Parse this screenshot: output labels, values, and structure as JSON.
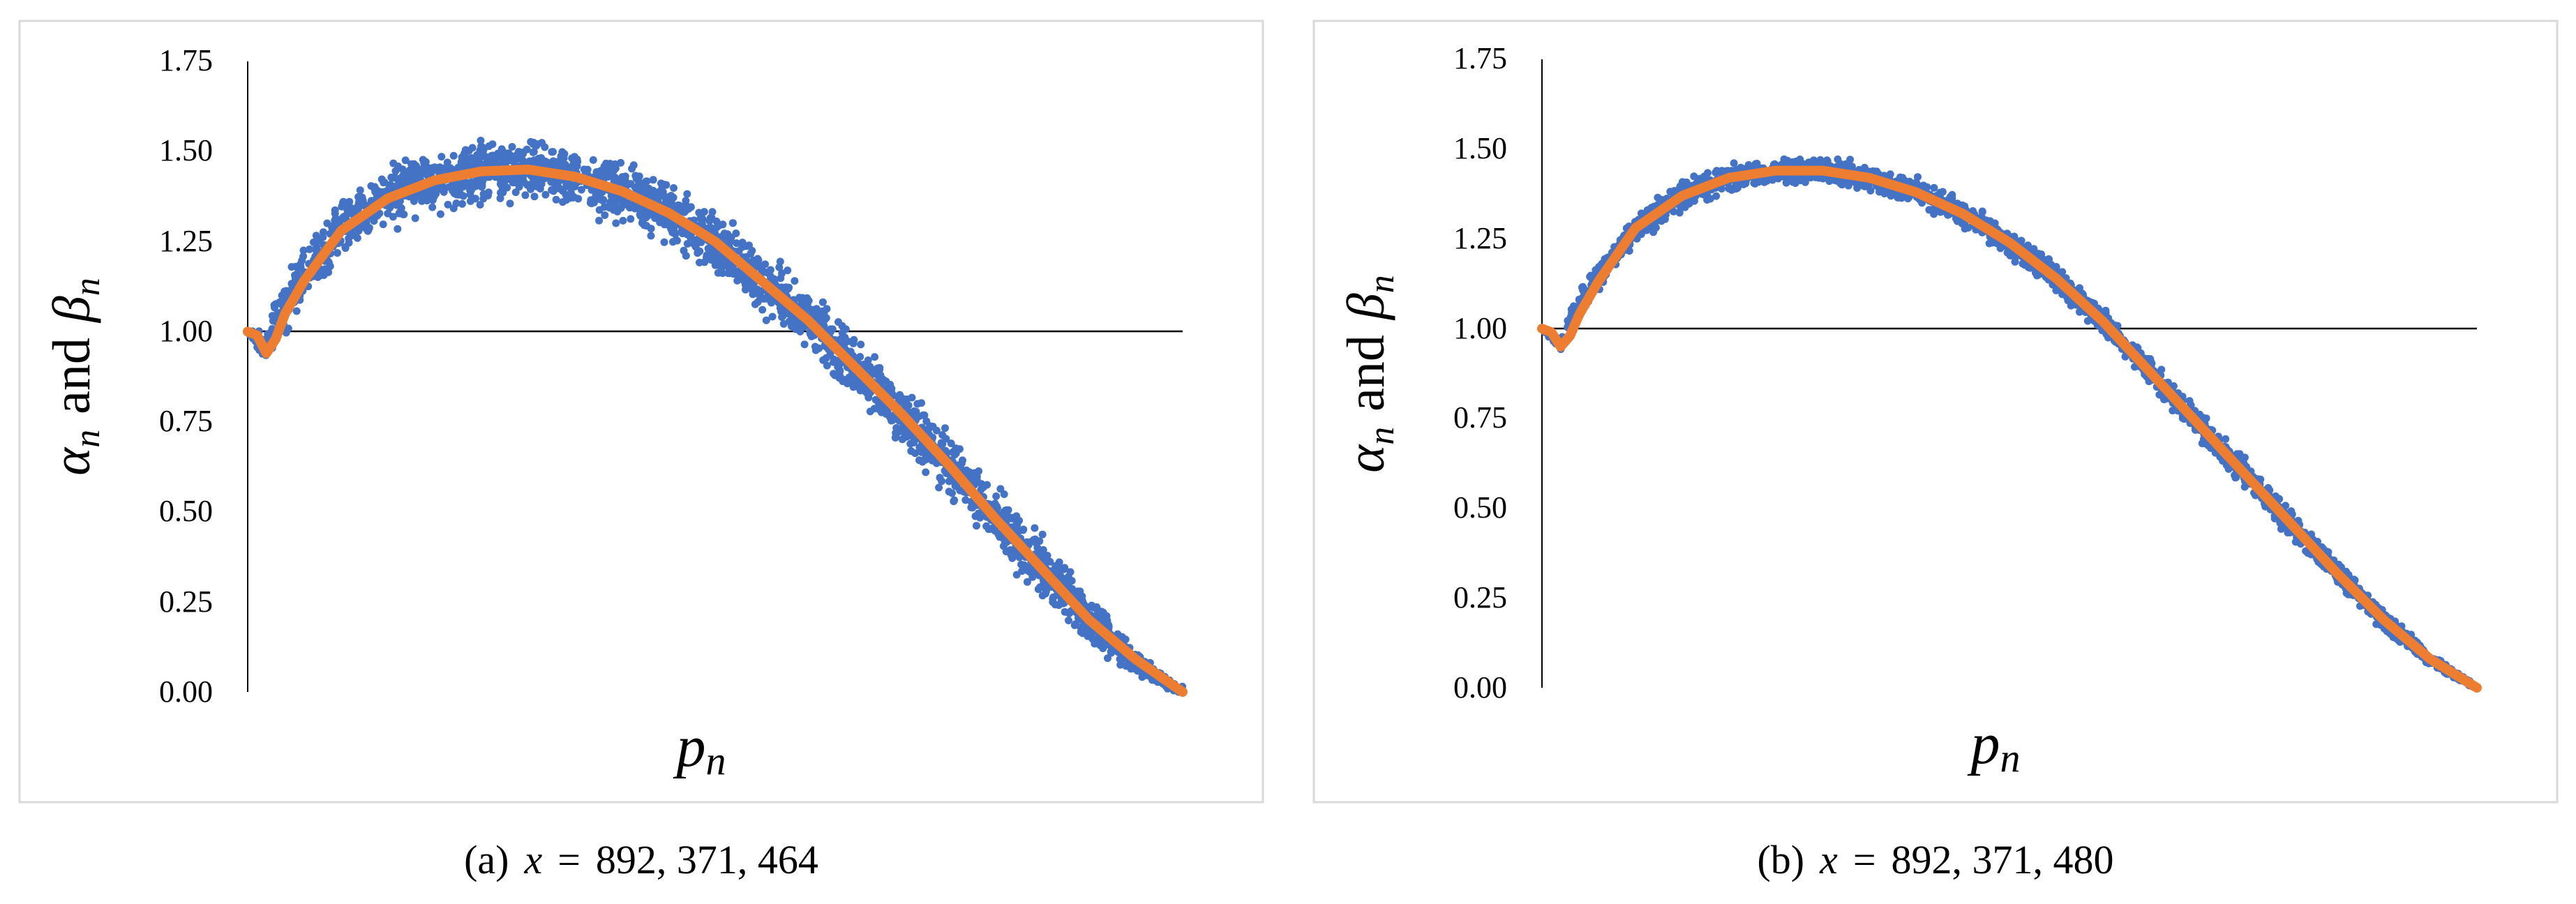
{
  "colors": {
    "scatter": "#4472c4",
    "fit": "#ed7d31",
    "reference_line": "#000000",
    "frame": "#d9d9d9",
    "axis": "#000000"
  },
  "chart_data": [
    {
      "panel": "a",
      "caption_prefix": "(a)",
      "caption_var": "x",
      "caption_eq": "=",
      "caption_value": "892, 371, 464",
      "type": "scatter",
      "xlabel": "p",
      "xlabel_sub": "n",
      "ylabel": {
        "a": "α",
        "a_sub": "n",
        "and": "and",
        "b": "β",
        "b_sub": "n"
      },
      "ylim": [
        0,
        1.75
      ],
      "yticks": [
        "0.00",
        "0.25",
        "0.50",
        "0.75",
        "1.00",
        "1.25",
        "1.50",
        "1.75"
      ],
      "ytick_values": [
        0,
        0.25,
        0.5,
        0.75,
        1.0,
        1.25,
        1.5,
        1.75
      ],
      "x_ticks_shown": false,
      "grid": false,
      "reference_line_y": 1.0,
      "scatter_spread": 0.05,
      "series": [
        {
          "kind": "scatter",
          "color_key": "scatter",
          "profile": [
            [
              0.0,
              1.0
            ],
            [
              0.01,
              0.98
            ],
            [
              0.02,
              0.95
            ],
            [
              0.03,
              1.03
            ],
            [
              0.05,
              1.12
            ],
            [
              0.1,
              1.29
            ],
            [
              0.15,
              1.37
            ],
            [
              0.2,
              1.42
            ],
            [
              0.25,
              1.445
            ],
            [
              0.3,
              1.45
            ],
            [
              0.35,
              1.43
            ],
            [
              0.4,
              1.39
            ],
            [
              0.45,
              1.33
            ],
            [
              0.5,
              1.25
            ],
            [
              0.55,
              1.14
            ],
            [
              0.6,
              1.03
            ],
            [
              0.65,
              0.9
            ],
            [
              0.7,
              0.77
            ],
            [
              0.75,
              0.63
            ],
            [
              0.8,
              0.48
            ],
            [
              0.85,
              0.34
            ],
            [
              0.9,
              0.2
            ],
            [
              0.95,
              0.08
            ],
            [
              1.0,
              0.0
            ]
          ]
        },
        {
          "kind": "line",
          "color_key": "fit",
          "points": [
            [
              0.0,
              1.0
            ],
            [
              0.01,
              0.99
            ],
            [
              0.02,
              0.94
            ],
            [
              0.03,
              0.98
            ],
            [
              0.04,
              1.05
            ],
            [
              0.06,
              1.14
            ],
            [
              0.1,
              1.28
            ],
            [
              0.15,
              1.37
            ],
            [
              0.2,
              1.42
            ],
            [
              0.25,
              1.445
            ],
            [
              0.3,
              1.45
            ],
            [
              0.35,
              1.43
            ],
            [
              0.4,
              1.39
            ],
            [
              0.45,
              1.33
            ],
            [
              0.5,
              1.25
            ],
            [
              0.55,
              1.14
            ],
            [
              0.6,
              1.03
            ],
            [
              0.65,
              0.9
            ],
            [
              0.7,
              0.77
            ],
            [
              0.75,
              0.63
            ],
            [
              0.8,
              0.48
            ],
            [
              0.85,
              0.34
            ],
            [
              0.9,
              0.2
            ],
            [
              0.95,
              0.09
            ],
            [
              1.0,
              0.0
            ]
          ]
        }
      ]
    },
    {
      "panel": "b",
      "caption_prefix": "(b)",
      "caption_var": "x",
      "caption_eq": "=",
      "caption_value": "892, 371, 480",
      "type": "scatter",
      "xlabel": "p",
      "xlabel_sub": "n",
      "ylabel": {
        "a": "α",
        "a_sub": "n",
        "and": "and",
        "b": "β",
        "b_sub": "n"
      },
      "ylim": [
        0,
        1.75
      ],
      "yticks": [
        "0.00",
        "0.25",
        "0.50",
        "0.75",
        "1.00",
        "1.25",
        "1.50",
        "1.75"
      ],
      "ytick_values": [
        0,
        0.25,
        0.5,
        0.75,
        1.0,
        1.25,
        1.5,
        1.75
      ],
      "x_ticks_shown": false,
      "grid": false,
      "reference_line_y": 1.0,
      "scatter_spread": 0.022,
      "series": [
        {
          "kind": "scatter",
          "color_key": "scatter",
          "profile": [
            [
              0.0,
              1.0
            ],
            [
              0.01,
              0.98
            ],
            [
              0.02,
              0.95
            ],
            [
              0.03,
              1.02
            ],
            [
              0.05,
              1.11
            ],
            [
              0.1,
              1.28
            ],
            [
              0.15,
              1.37
            ],
            [
              0.2,
              1.42
            ],
            [
              0.25,
              1.44
            ],
            [
              0.3,
              1.44
            ],
            [
              0.35,
              1.42
            ],
            [
              0.4,
              1.38
            ],
            [
              0.45,
              1.32
            ],
            [
              0.5,
              1.24
            ],
            [
              0.55,
              1.14
            ],
            [
              0.6,
              1.02
            ],
            [
              0.65,
              0.88
            ],
            [
              0.7,
              0.74
            ],
            [
              0.75,
              0.6
            ],
            [
              0.8,
              0.46
            ],
            [
              0.85,
              0.32
            ],
            [
              0.9,
              0.19
            ],
            [
              0.95,
              0.08
            ],
            [
              1.0,
              0.0
            ]
          ]
        },
        {
          "kind": "line",
          "color_key": "fit",
          "points": [
            [
              0.0,
              1.0
            ],
            [
              0.01,
              0.99
            ],
            [
              0.02,
              0.95
            ],
            [
              0.03,
              0.98
            ],
            [
              0.04,
              1.04
            ],
            [
              0.06,
              1.13
            ],
            [
              0.1,
              1.28
            ],
            [
              0.15,
              1.37
            ],
            [
              0.2,
              1.42
            ],
            [
              0.25,
              1.44
            ],
            [
              0.3,
              1.44
            ],
            [
              0.35,
              1.42
            ],
            [
              0.4,
              1.38
            ],
            [
              0.45,
              1.32
            ],
            [
              0.5,
              1.24
            ],
            [
              0.55,
              1.14
            ],
            [
              0.6,
              1.02
            ],
            [
              0.65,
              0.88
            ],
            [
              0.7,
              0.74
            ],
            [
              0.75,
              0.6
            ],
            [
              0.8,
              0.46
            ],
            [
              0.85,
              0.32
            ],
            [
              0.9,
              0.19
            ],
            [
              0.95,
              0.08
            ],
            [
              1.0,
              0.0
            ]
          ]
        }
      ]
    }
  ]
}
